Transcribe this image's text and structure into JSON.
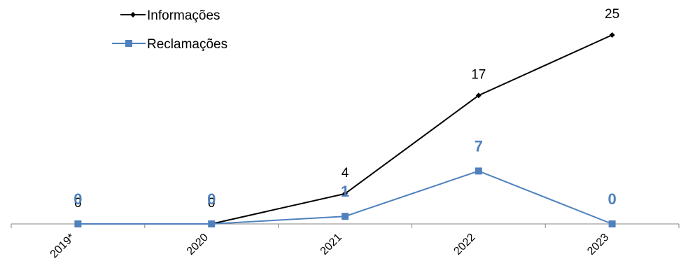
{
  "chart_data": {
    "type": "line",
    "categories": [
      "2019*",
      "2020",
      "2021",
      "2022",
      "2023"
    ],
    "series": [
      {
        "name": "Informações",
        "values": [
          0,
          0,
          4,
          17,
          25
        ],
        "data_labels": [
          "0",
          "0",
          "4",
          "17",
          "25"
        ],
        "color": "#000000",
        "marker": "diamond"
      },
      {
        "name": "Reclamações",
        "values": [
          0,
          0,
          1,
          7,
          0
        ],
        "data_labels": [
          "0",
          "0",
          "1",
          "7",
          "0"
        ],
        "color": "#4F81BD",
        "marker": "square"
      }
    ],
    "legend_position": "top-left",
    "grid": false
  }
}
